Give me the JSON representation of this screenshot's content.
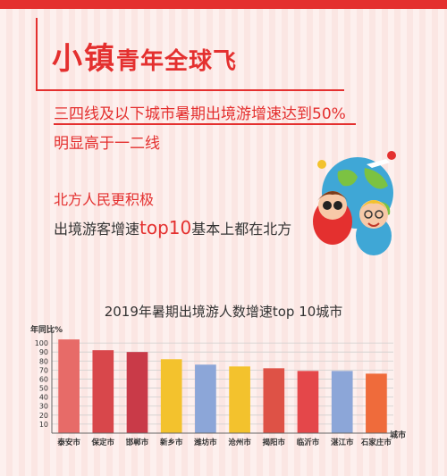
{
  "header": {
    "title_big": "小镇",
    "title_small": "青年全球飞",
    "line1": "三四线及以下城市暑期出境游增速达到50%",
    "line2": "明显高于一二线",
    "line3": "北方人民更积极",
    "line4_pre": "出境游客增速",
    "line4_hl": "top10",
    "line4_post": "基本上都在北方"
  },
  "chart_data": {
    "type": "bar",
    "title": "2019年暑期出境游人数增速top 10城市",
    "ylabel": "年同比%",
    "xlabel": "城市",
    "categories": [
      "泰安市",
      "保定市",
      "邯郸市",
      "新乡市",
      "潍坊市",
      "沧州市",
      "揭阳市",
      "临沂市",
      "湛江市",
      "石家庄市"
    ],
    "values": [
      104,
      92,
      90,
      82,
      76,
      74,
      72,
      69,
      69,
      66
    ],
    "ylim": [
      0,
      110
    ],
    "yticks": [
      10,
      20,
      30,
      40,
      50,
      60,
      70,
      80,
      90,
      100
    ],
    "colors": [
      "#e76b68",
      "#d8474b",
      "#c93a48",
      "#f3c22d",
      "#8ca6d8",
      "#f3c22d",
      "#de5246",
      "#e4474a",
      "#8ca6d8",
      "#ef6b3b"
    ]
  }
}
